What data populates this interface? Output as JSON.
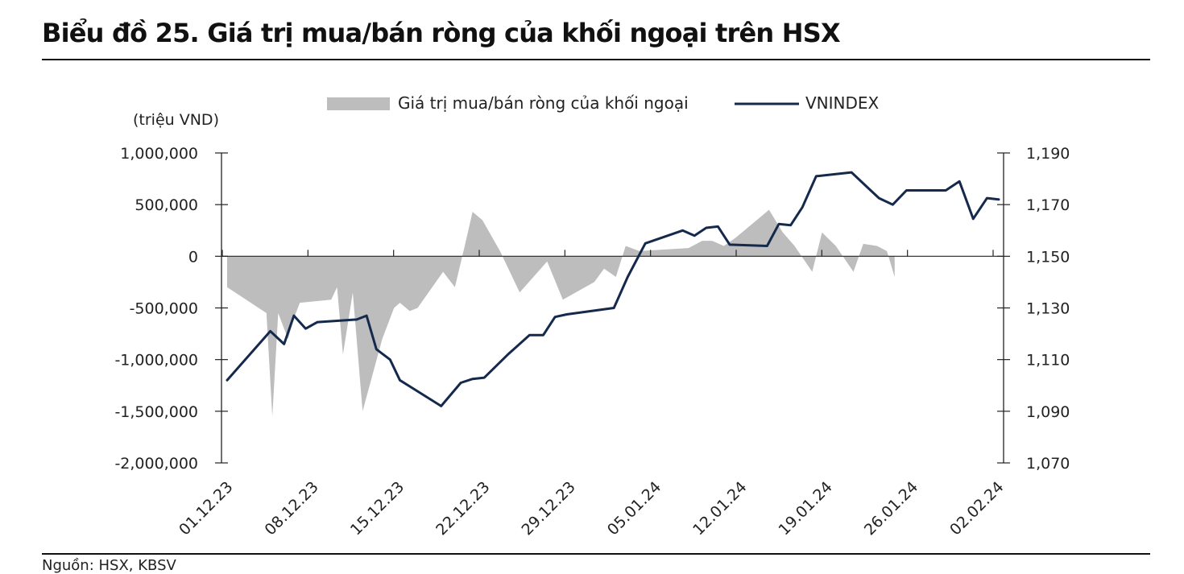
{
  "title": "Biểu đồ 25. Giá trị mua/bán ròng của khối ngoại trên HSX",
  "source": "Nguồn: HSX, KBSV",
  "colors": {
    "area": "#bdbdbd",
    "line": "#14294b",
    "axis": "#222222"
  },
  "chart_data": {
    "type": "area",
    "unit_label": "(triệu VND)",
    "legend": [
      "Giá trị mua/bán ròng của khối ngoại",
      "VNINDEX"
    ],
    "legend_position": "top-center",
    "grid": false,
    "x_tick_labels": [
      "01.12.23",
      "08.12.23",
      "15.12.23",
      "22.12.23",
      "29.12.23",
      "05.01.24",
      "12.01.24",
      "19.01.24",
      "26.01.24",
      "02.02.24"
    ],
    "y_left": {
      "min": -2000000,
      "max": 1000000,
      "ticks": [
        "1,000,000",
        "500,000",
        "0",
        "-500,000",
        "-1,000,000",
        "-1,500,000",
        "-2,000,000"
      ]
    },
    "y_right": {
      "min": 1070,
      "max": 1190,
      "ticks": [
        "1,190",
        "1,170",
        "1,150",
        "1,130",
        "1,110",
        "1,090",
        "1,070"
      ]
    },
    "series": [
      {
        "name": "Giá trị mua/bán ròng của khối ngoại",
        "axis": "left",
        "type": "area",
        "values": [
          [
            0,
            -300000
          ],
          [
            4,
            -550000
          ],
          [
            4.6,
            -1550000
          ],
          [
            5.2,
            -550000
          ],
          [
            6.2,
            -800000
          ],
          [
            6.8,
            -600000
          ],
          [
            7.4,
            -450000
          ],
          [
            10.6,
            -420000
          ],
          [
            11.2,
            -300000
          ],
          [
            11.8,
            -950000
          ],
          [
            12.8,
            -350000
          ],
          [
            13.8,
            -1500000
          ],
          [
            15.8,
            -800000
          ],
          [
            17,
            -500000
          ],
          [
            17.6,
            -450000
          ],
          [
            18.6,
            -530000
          ],
          [
            19.4,
            -500000
          ],
          [
            22,
            -150000
          ],
          [
            23.2,
            -300000
          ],
          [
            24.2,
            100000
          ],
          [
            25,
            430000
          ],
          [
            26,
            350000
          ],
          [
            27.8,
            50000
          ],
          [
            29.8,
            -350000
          ],
          [
            31.2,
            -200000
          ],
          [
            32.6,
            -50000
          ],
          [
            34.2,
            -420000
          ],
          [
            37.4,
            -250000
          ],
          [
            38.4,
            -120000
          ],
          [
            39.6,
            -200000
          ],
          [
            40.6,
            100000
          ],
          [
            42,
            50000
          ],
          [
            47,
            80000
          ],
          [
            48.4,
            150000
          ],
          [
            49.4,
            150000
          ],
          [
            50.6,
            100000
          ],
          [
            51.8,
            180000
          ],
          [
            55.2,
            450000
          ],
          [
            56.6,
            230000
          ],
          [
            57.8,
            100000
          ],
          [
            59.6,
            -150000
          ],
          [
            60.6,
            230000
          ],
          [
            62,
            100000
          ],
          [
            63.8,
            -150000
          ],
          [
            64.8,
            120000
          ],
          [
            66.2,
            100000
          ],
          [
            67.2,
            50000
          ],
          [
            68,
            -200000
          ]
        ]
      },
      {
        "name": "VNINDEX",
        "axis": "right",
        "type": "line",
        "values": [
          [
            0,
            1102
          ],
          [
            4.4,
            1121
          ],
          [
            5.8,
            1116
          ],
          [
            6.8,
            1127
          ],
          [
            8,
            1122
          ],
          [
            9.2,
            1124.5
          ],
          [
            13.2,
            1125.5
          ],
          [
            14.2,
            1127
          ],
          [
            15.2,
            1114
          ],
          [
            16.6,
            1110
          ],
          [
            17.6,
            1102
          ],
          [
            21.8,
            1092
          ],
          [
            23.8,
            1101
          ],
          [
            25,
            1102.5
          ],
          [
            26.2,
            1103
          ],
          [
            28.6,
            1112
          ],
          [
            30.8,
            1119.5
          ],
          [
            32.2,
            1119.5
          ],
          [
            33.4,
            1126.5
          ],
          [
            34.6,
            1127.5
          ],
          [
            39.4,
            1130
          ],
          [
            40.8,
            1142
          ],
          [
            42.6,
            1155
          ],
          [
            46.4,
            1160
          ],
          [
            47.6,
            1158
          ],
          [
            48.8,
            1161
          ],
          [
            50,
            1161.5
          ],
          [
            51.2,
            1154.5
          ],
          [
            55,
            1154
          ],
          [
            56.2,
            1162.5
          ],
          [
            57.4,
            1162
          ],
          [
            58.6,
            1169
          ],
          [
            60,
            1181
          ],
          [
            63.6,
            1182.5
          ],
          [
            65,
            1177.5
          ],
          [
            66.4,
            1172.5
          ],
          [
            67.8,
            1170
          ],
          [
            69.2,
            1175.5
          ],
          [
            73.2,
            1175.5
          ],
          [
            74.6,
            1179
          ],
          [
            76,
            1164.5
          ],
          [
            77.4,
            1172.5
          ],
          [
            78.6,
            1172
          ]
        ]
      }
    ]
  }
}
